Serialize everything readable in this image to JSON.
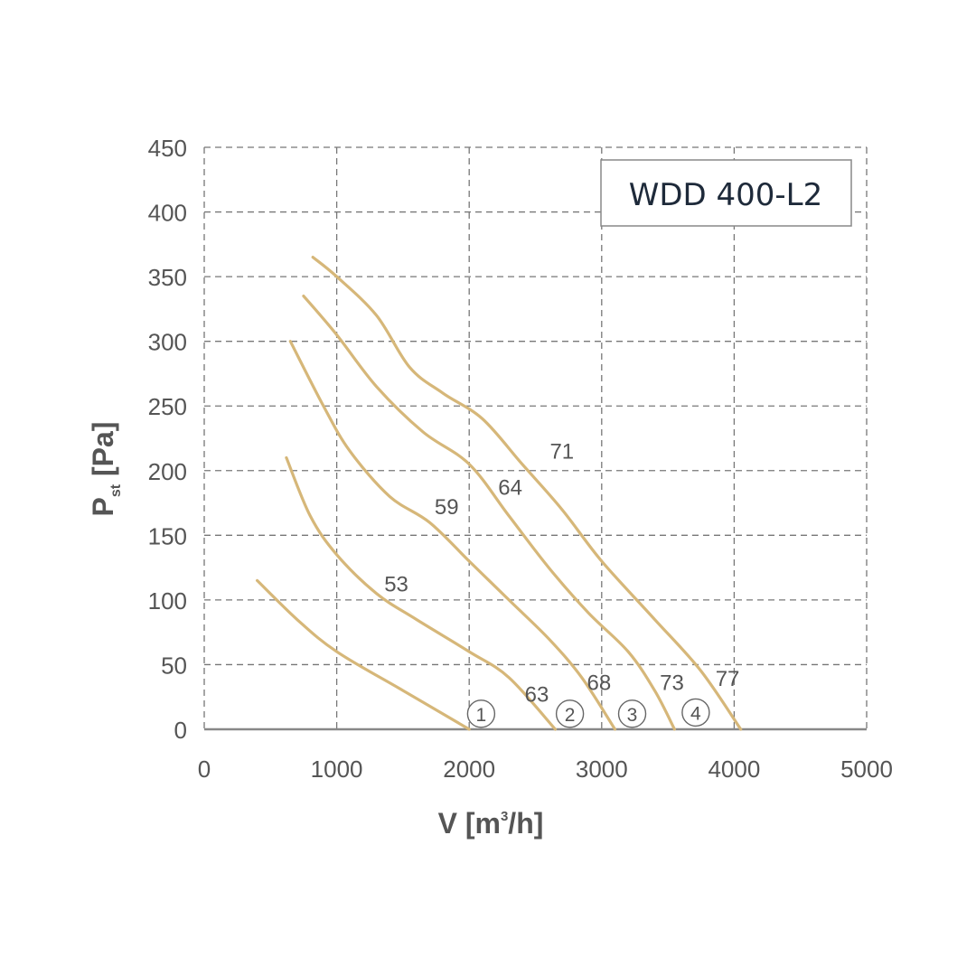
{
  "chart_data": {
    "type": "line",
    "title": "WDD 400-L2",
    "xlabel": {
      "main": "V [m",
      "sup": "3",
      "tail": "/h]"
    },
    "ylabel": {
      "main": "P",
      "sub": "st",
      "tail": " [Pa]"
    },
    "xlim": [
      0,
      5000
    ],
    "ylim": [
      0,
      450
    ],
    "xticks": [
      "0",
      "1000",
      "2000",
      "3000",
      "4000",
      "5000"
    ],
    "yticks": [
      "0",
      "50",
      "100",
      "150",
      "200",
      "250",
      "300",
      "350",
      "400",
      "450"
    ],
    "grid": true,
    "series": [
      {
        "x": [
          400,
          700,
          1000,
          1500,
          2000
        ],
        "y": [
          115,
          85,
          60,
          30,
          0
        ]
      },
      {
        "x": [
          620,
          800,
          1000,
          1300,
          1600,
          2000,
          2300,
          2650
        ],
        "y": [
          210,
          165,
          135,
          105,
          85,
          60,
          40,
          0
        ]
      },
      {
        "x": [
          650,
          900,
          1100,
          1400,
          1700,
          2000,
          2300,
          2600,
          2850,
          3100
        ],
        "y": [
          300,
          250,
          215,
          180,
          160,
          130,
          100,
          70,
          40,
          0
        ]
      },
      {
        "x": [
          750,
          1000,
          1300,
          1650,
          2000,
          2300,
          2600,
          2900,
          3200,
          3400,
          3550
        ],
        "y": [
          335,
          305,
          265,
          230,
          205,
          165,
          125,
          90,
          60,
          30,
          0
        ]
      },
      {
        "x": [
          820,
          1000,
          1300,
          1550,
          1800,
          2100,
          2400,
          2700,
          3000,
          3400,
          3750,
          4050
        ],
        "y": [
          365,
          350,
          320,
          280,
          260,
          240,
          205,
          170,
          130,
          85,
          45,
          0
        ]
      }
    ],
    "annotations": [
      {
        "text": "53",
        "x": 1450,
        "y": 112
      },
      {
        "text": "59",
        "x": 1830,
        "y": 172
      },
      {
        "text": "64",
        "x": 2310,
        "y": 187
      },
      {
        "text": "71",
        "x": 2700,
        "y": 215
      },
      {
        "text": "63",
        "x": 2510,
        "y": 27
      },
      {
        "text": "68",
        "x": 2980,
        "y": 36
      },
      {
        "text": "73",
        "x": 3530,
        "y": 36
      },
      {
        "text": "77",
        "x": 3950,
        "y": 39
      }
    ],
    "markers": [
      {
        "text": "1",
        "x": 2090,
        "y": 12
      },
      {
        "text": "2",
        "x": 2760,
        "y": 12
      },
      {
        "text": "3",
        "x": 3230,
        "y": 12
      },
      {
        "text": "4",
        "x": 3710,
        "y": 13
      }
    ]
  },
  "colors": {
    "curve": "#d6b779",
    "grid": "#777777",
    "text": "#555555",
    "title": "#1e2a3a"
  }
}
